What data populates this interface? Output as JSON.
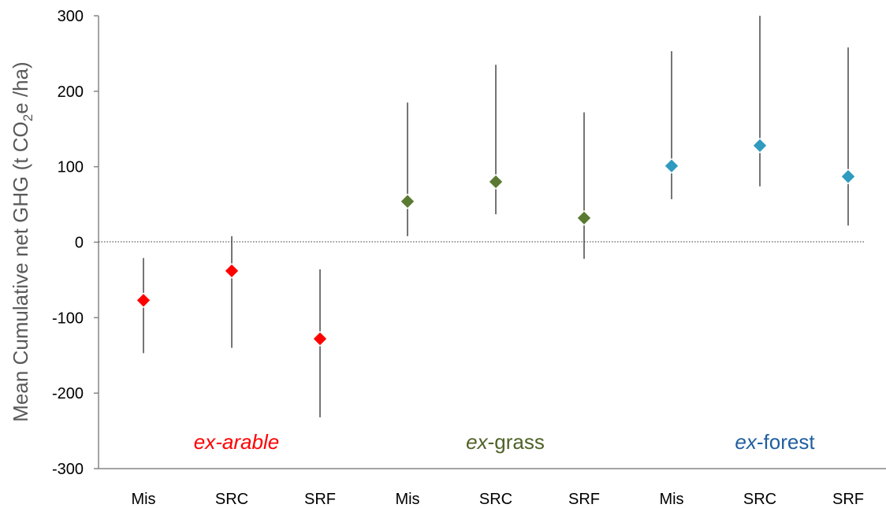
{
  "chart_data": {
    "type": "scatter",
    "ylabel": {
      "prefix": "Mean Cumulative net GHG (t CO",
      "subscript": "2",
      "suffix": "e /ha)"
    },
    "ylim": [
      -300,
      300
    ],
    "yticks": [
      -300,
      -200,
      -100,
      0,
      100,
      200,
      300
    ],
    "ytick_labels": [
      "-300",
      "-200",
      "-100",
      "0",
      "100",
      "200",
      "300"
    ],
    "zero_line": "dotted",
    "grid": false,
    "categories": [
      "Mis",
      "SRC",
      "SRF",
      "Mis",
      "SRC",
      "SRF",
      "Mis",
      "SRC",
      "SRF"
    ],
    "groups": [
      {
        "prefix": "ex-",
        "name": "arable",
        "color": "#ff0000",
        "italic_all": true,
        "marker_color": "#ff0000"
      },
      {
        "prefix": "ex",
        "name": "-grass",
        "color": "#4f6228",
        "italic_all": false,
        "marker_color": "#5a7a32"
      },
      {
        "prefix": "ex",
        "name": "-forest",
        "color": "#1f5fa0",
        "italic_all": false,
        "marker_color": "#2e9bbf"
      }
    ],
    "series": [
      {
        "group": 0,
        "values": [
          -77,
          -38,
          -128
        ],
        "low": [
          -147,
          -140,
          -232
        ],
        "high": [
          -21,
          8,
          -36
        ]
      },
      {
        "group": 1,
        "values": [
          54,
          80,
          32
        ],
        "low": [
          8,
          37,
          -22
        ],
        "high": [
          185,
          235,
          172
        ]
      },
      {
        "group": 2,
        "values": [
          101,
          128,
          87
        ],
        "low": [
          57,
          74,
          22
        ],
        "high": [
          253,
          300,
          258
        ]
      }
    ]
  }
}
